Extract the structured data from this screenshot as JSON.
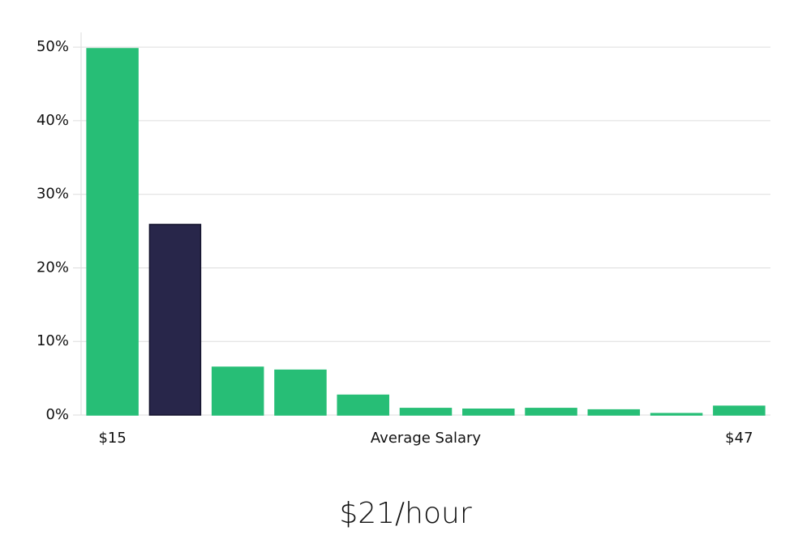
{
  "chart_data": {
    "type": "bar",
    "categories": [
      "$15",
      null,
      null,
      null,
      null,
      null,
      null,
      null,
      null,
      null,
      "$47"
    ],
    "values": [
      49.8,
      25.9,
      6.5,
      6.1,
      2.7,
      0.9,
      0.8,
      0.9,
      0.7,
      0.2,
      1.2
    ],
    "colors": [
      "#27be76",
      "#28264a",
      "#27be76",
      "#27be76",
      "#27be76",
      "#27be76",
      "#27be76",
      "#27be76",
      "#27be76",
      "#27be76",
      "#27be76"
    ],
    "x_label": "Average Salary",
    "caption": "$21/hour",
    "ylim": [
      0,
      52
    ],
    "yticks": [
      {
        "value": 0,
        "label": "0%"
      },
      {
        "value": 10,
        "label": "10%"
      },
      {
        "value": 20,
        "label": "20%"
      },
      {
        "value": 30,
        "label": "30%"
      },
      {
        "value": 40,
        "label": "40%"
      },
      {
        "value": 50,
        "label": "50%"
      }
    ],
    "grid": true
  }
}
